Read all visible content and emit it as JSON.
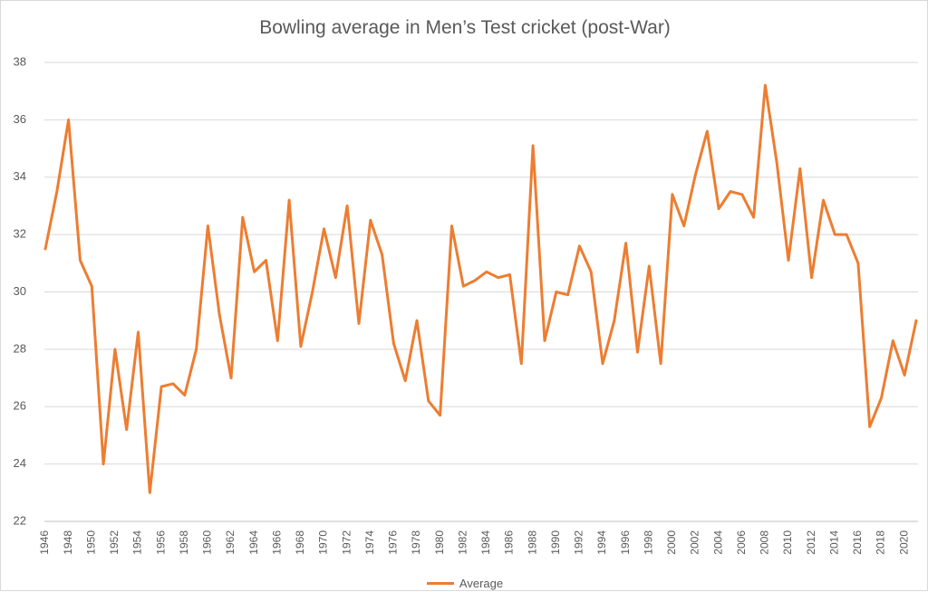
{
  "chart_data": {
    "type": "line",
    "title": "Bowling average in Men’s Test cricket (post-War)",
    "xlabel": "",
    "ylabel": "",
    "ylim": [
      22,
      38
    ],
    "yticks": [
      22,
      24,
      26,
      28,
      30,
      32,
      34,
      36,
      38
    ],
    "x": [
      1946,
      1947,
      1948,
      1949,
      1950,
      1951,
      1952,
      1953,
      1954,
      1955,
      1956,
      1957,
      1958,
      1959,
      1960,
      1961,
      1962,
      1963,
      1964,
      1965,
      1966,
      1967,
      1968,
      1969,
      1970,
      1971,
      1972,
      1973,
      1974,
      1975,
      1976,
      1977,
      1978,
      1979,
      1980,
      1981,
      1982,
      1983,
      1984,
      1985,
      1986,
      1987,
      1988,
      1989,
      1990,
      1991,
      1992,
      1993,
      1994,
      1995,
      1996,
      1997,
      1998,
      1999,
      2000,
      2001,
      2002,
      2003,
      2004,
      2005,
      2006,
      2007,
      2008,
      2009,
      2010,
      2011,
      2012,
      2013,
      2014,
      2015,
      2016,
      2017,
      2018,
      2019,
      2020,
      2021
    ],
    "xticks": [
      "1946",
      "1948",
      "1950",
      "1952",
      "1954",
      "1956",
      "1958",
      "1960",
      "1962",
      "1964",
      "1966",
      "1968",
      "1970",
      "1972",
      "1974",
      "1976",
      "1978",
      "1980",
      "1982",
      "1984",
      "1986",
      "1988",
      "1990",
      "1992",
      "1994",
      "1996",
      "1998",
      "2000",
      "2002",
      "2004",
      "2006",
      "2008",
      "2010",
      "2012",
      "2014",
      "2016",
      "2018",
      "2020"
    ],
    "series": [
      {
        "name": "Average",
        "color": "#ED7D31",
        "values": [
          31.5,
          33.5,
          36.0,
          31.1,
          30.2,
          24.0,
          28.0,
          25.2,
          28.6,
          23.0,
          26.7,
          26.8,
          26.4,
          28.0,
          32.3,
          29.2,
          27.0,
          32.6,
          30.7,
          31.1,
          28.3,
          33.2,
          28.1,
          30.0,
          32.2,
          30.5,
          33.0,
          28.9,
          32.5,
          31.3,
          28.2,
          26.9,
          29.0,
          26.2,
          25.7,
          32.3,
          30.2,
          30.4,
          30.7,
          30.5,
          30.6,
          27.5,
          35.1,
          28.3,
          30.0,
          29.9,
          31.6,
          30.7,
          27.5,
          29.0,
          31.7,
          27.9,
          30.9,
          27.5,
          33.4,
          32.3,
          34.1,
          35.6,
          32.9,
          33.5,
          33.4,
          32.6,
          37.2,
          34.5,
          31.1,
          34.3,
          30.5,
          33.2,
          32.0,
          32.0,
          31.0,
          25.3,
          26.3,
          28.3,
          27.1,
          29.0
        ]
      }
    ],
    "legend_position": "bottom",
    "grid": true
  }
}
